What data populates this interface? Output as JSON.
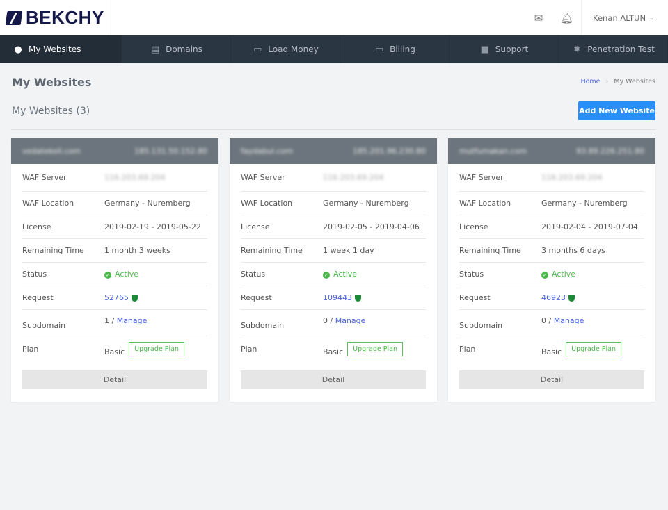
{
  "brand": {
    "name": "BEKCHY"
  },
  "header": {
    "user_name": "Kenan ALTUN",
    "icons": [
      "mail-icon",
      "bell-icon"
    ]
  },
  "nav": [
    {
      "label": "My Websites",
      "icon": "globe-icon",
      "active": true
    },
    {
      "label": "Domains",
      "icon": "server-icon"
    },
    {
      "label": "Load Money",
      "icon": "card-plus-icon"
    },
    {
      "label": "Billing",
      "icon": "credit-card-icon"
    },
    {
      "label": "Support",
      "icon": "chat-icon"
    },
    {
      "label": "Penetration Test",
      "icon": "bug-icon"
    }
  ],
  "page": {
    "title": "My Websites",
    "breadcrumb": [
      "Home",
      "My Websites"
    ],
    "subtitle": "My Websites (3)",
    "add_button": "Add New Website"
  },
  "labels": {
    "waf_server": "WAF Server",
    "waf_location": "WAF Location",
    "license": "License",
    "remaining": "Remaining Time",
    "status": "Status",
    "request": "Request",
    "subdomain": "Subdomain",
    "plan": "Plan",
    "upgrade": "Upgrade Plan",
    "detail": "Detail",
    "manage": "Manage"
  },
  "colors": {
    "nav_bg": "#2b3643",
    "accent": "#2a8ef7",
    "active": "#4cb84c",
    "link": "#4a63e0"
  },
  "websites": [
    {
      "domain": "vedatekoll.com",
      "ip": "185.131.50.152.80",
      "waf_server": "116.203.69.204",
      "waf_location": "Germany - Nuremberg",
      "license": "2019-02-19 - 2019-05-22",
      "remaining": "1 month 3 weeks",
      "status": "Active",
      "requests": "52765",
      "subdomains": "1 /",
      "plan": "Basic"
    },
    {
      "domain": "faydabul.com",
      "ip": "185.201.96.230.80",
      "waf_server": "116.203.69.204",
      "waf_location": "Germany - Nuremberg",
      "license": "2019-02-05 - 2019-04-06",
      "remaining": "1 week 1 day",
      "status": "Active",
      "requests": "109443",
      "subdomains": "0 /",
      "plan": "Basic"
    },
    {
      "domain": "mutfumakan.com",
      "ip": "93.89.226.251.80",
      "waf_server": "116.203.69.204",
      "waf_location": "Germany - Nuremberg",
      "license": "2019-02-04 - 2019-07-04",
      "remaining": "3 months 6 days",
      "status": "Active",
      "requests": "46923",
      "subdomains": "0 /",
      "plan": "Basic"
    }
  ]
}
